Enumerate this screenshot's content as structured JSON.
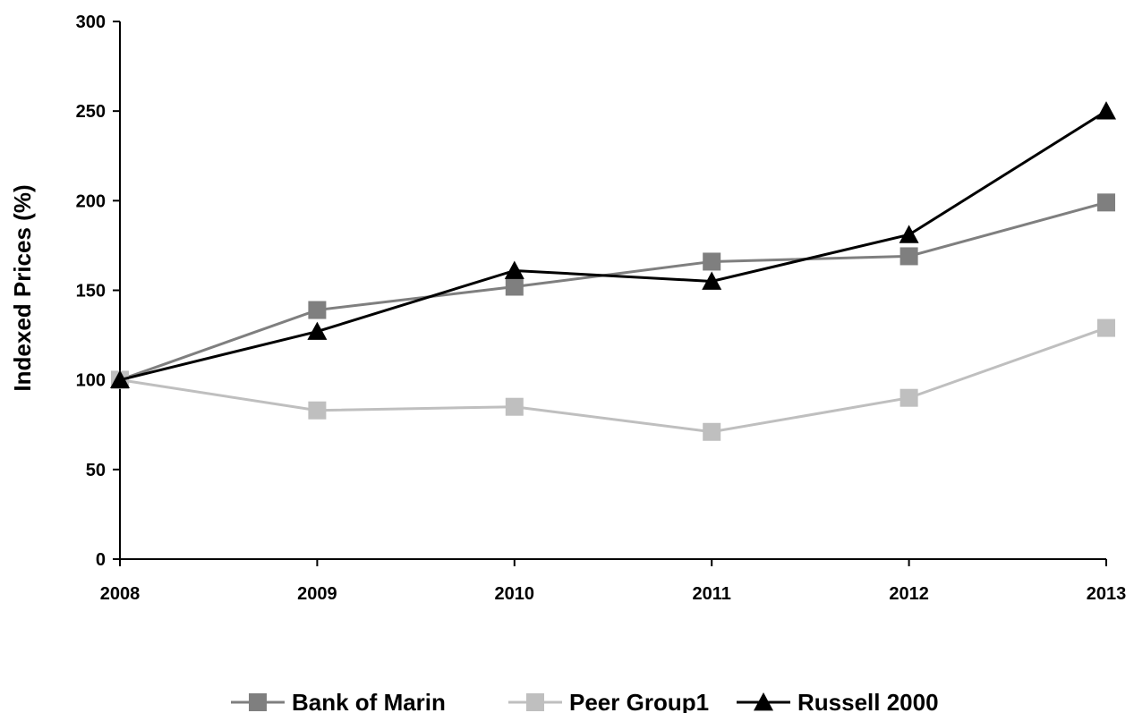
{
  "chart_data": {
    "type": "line",
    "title": "",
    "xlabel": "",
    "ylabel": "Indexed Prices (%)",
    "x": [
      "2008",
      "2009",
      "2010",
      "2011",
      "2012",
      "2013"
    ],
    "ylim": [
      0,
      300
    ],
    "yticks": [
      0,
      50,
      100,
      150,
      200,
      250,
      300
    ],
    "grid": false,
    "legend_position": "bottom",
    "series": [
      {
        "name": "Bank of Marin",
        "values": [
          100,
          139,
          152,
          166,
          169,
          199
        ],
        "color": "#7f7f7f",
        "marker": "square"
      },
      {
        "name": "Peer Group1",
        "values": [
          100,
          83,
          85,
          71,
          90,
          129
        ],
        "color": "#bfbfbf",
        "marker": "square"
      },
      {
        "name": "Russell 2000",
        "values": [
          100,
          127,
          161,
          155,
          181,
          250
        ],
        "color": "#000000",
        "marker": "triangle"
      }
    ]
  }
}
